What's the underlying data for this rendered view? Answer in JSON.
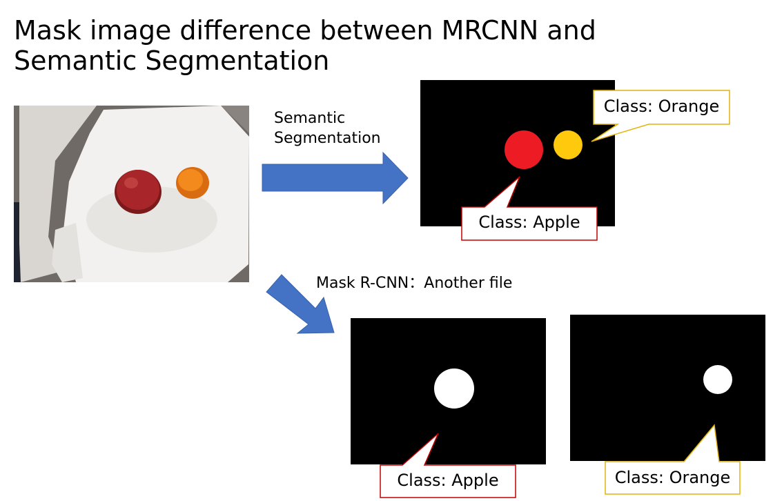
{
  "title": "Mask image difference between MRCNN and Semantic Segmentation",
  "labels": {
    "semantic": "Semantic\nSegmentation",
    "mrcnn": "Mask R-CNN：Another file"
  },
  "semantic_panel": {
    "callouts": {
      "orange": "Class: Orange",
      "apple": "Class: Apple"
    }
  },
  "mrcnn_panels": {
    "apple_callout": "Class: Apple",
    "orange_callout": "Class: Orange"
  },
  "colors": {
    "arrow": "#4472c4",
    "apple": "#ed1c24",
    "orange": "#ffc90e",
    "apple_border": "#c00000",
    "orange_border": "#e2b40a"
  }
}
